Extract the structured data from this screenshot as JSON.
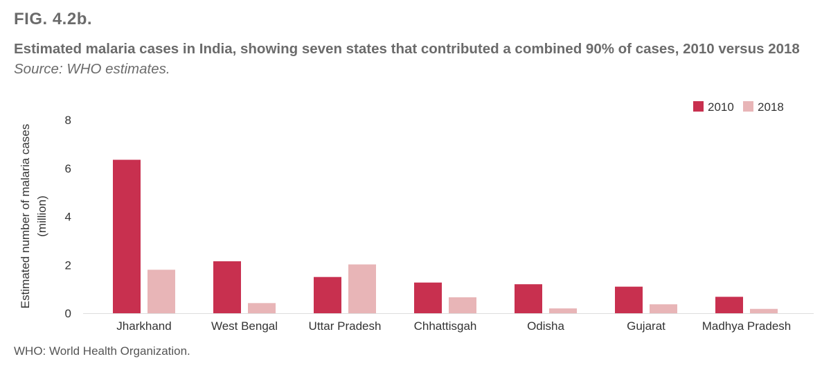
{
  "figure": {
    "label": "FIG. 4.2b.",
    "title": "Estimated malaria cases in India, showing seven states that contributed a combined 90% of cases, 2010 versus 2018",
    "source": "Source: WHO estimates.",
    "footnote": "WHO: World Health Organization."
  },
  "colors": {
    "series_2010": "#c8304f",
    "series_2018": "#e8b5b7",
    "axis": "#dddddd"
  },
  "chart_data": {
    "type": "bar",
    "categories": [
      "Jharkhand",
      "West Bengal",
      "Uttar Pradesh",
      "Chhattisgah",
      "Odisha",
      "Gujarat",
      "Madhya Pradesh"
    ],
    "series": [
      {
        "name": "2010",
        "values": [
          6.35,
          2.15,
          1.5,
          1.27,
          1.2,
          1.1,
          0.68
        ]
      },
      {
        "name": "2018",
        "values": [
          1.8,
          0.42,
          2.02,
          0.66,
          0.2,
          0.37,
          0.18
        ]
      }
    ],
    "ylabel": "Estimated number of malaria cases (million)",
    "ylabel_lines": [
      "Estimated number of malaria cases",
      "(million)"
    ],
    "yticks": [
      0,
      2,
      4,
      6,
      8
    ],
    "ylim": [
      0,
      8
    ],
    "legend_position": "top-right",
    "grid": false
  }
}
